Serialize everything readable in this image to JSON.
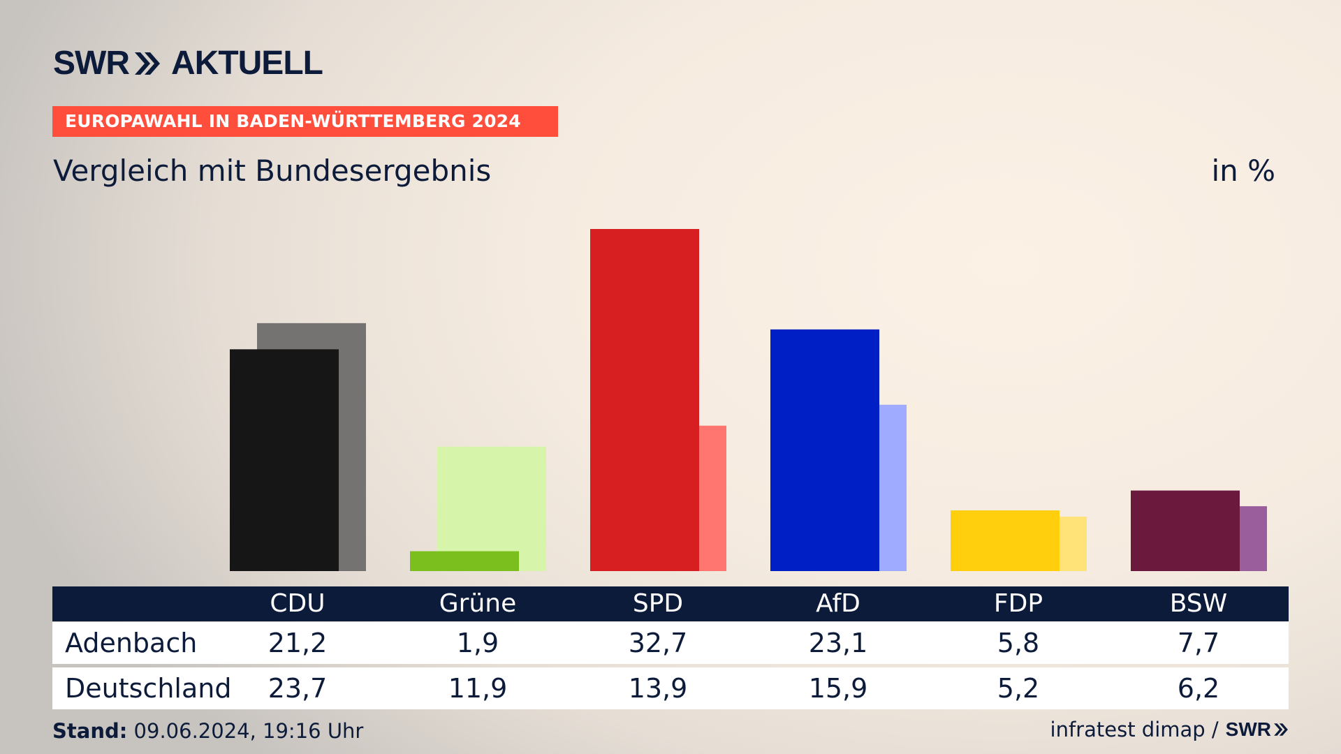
{
  "brand": {
    "logo_left": "SWR",
    "logo_right": "AKTUELL"
  },
  "banner": "EUROPAWAHL IN BADEN-WÜRTTEMBERG 2024",
  "subtitle": "Vergleich mit Bundesergebnis",
  "unit": "in %",
  "table": {
    "rows": [
      {
        "label": "Adenbach",
        "values": [
          "21,2",
          "1,9",
          "32,7",
          "23,1",
          "5,8",
          "7,7"
        ]
      },
      {
        "label": "Deutschland",
        "values": [
          "23,7",
          "11,9",
          "13,9",
          "15,9",
          "5,2",
          "6,2"
        ]
      }
    ]
  },
  "footer": {
    "stand_label": "Stand:",
    "stand_value": "09.06.2024, 19:16 Uhr",
    "source": "infratest dimap /",
    "logo": "SWR"
  },
  "chart_data": {
    "type": "bar",
    "categories": [
      "CDU",
      "Grüne",
      "SPD",
      "AfD",
      "FDP",
      "BSW"
    ],
    "series": [
      {
        "name": "Adenbach",
        "values": [
          21.2,
          1.9,
          32.7,
          23.1,
          5.8,
          7.7
        ]
      },
      {
        "name": "Deutschland",
        "values": [
          23.7,
          11.9,
          13.9,
          15.9,
          5.2,
          6.2
        ]
      }
    ],
    "colors_primary": [
      "#161616",
      "#7bbf1f",
      "#d71f21",
      "#0020c6",
      "#ffce0c",
      "#6b1a3e"
    ],
    "colors_secondary": [
      "#757372",
      "#d7f5aa",
      "#ff7670",
      "#9eabff",
      "#ffe378",
      "#9b5e9c"
    ],
    "ylim": [
      0,
      35
    ],
    "grid": false
  }
}
